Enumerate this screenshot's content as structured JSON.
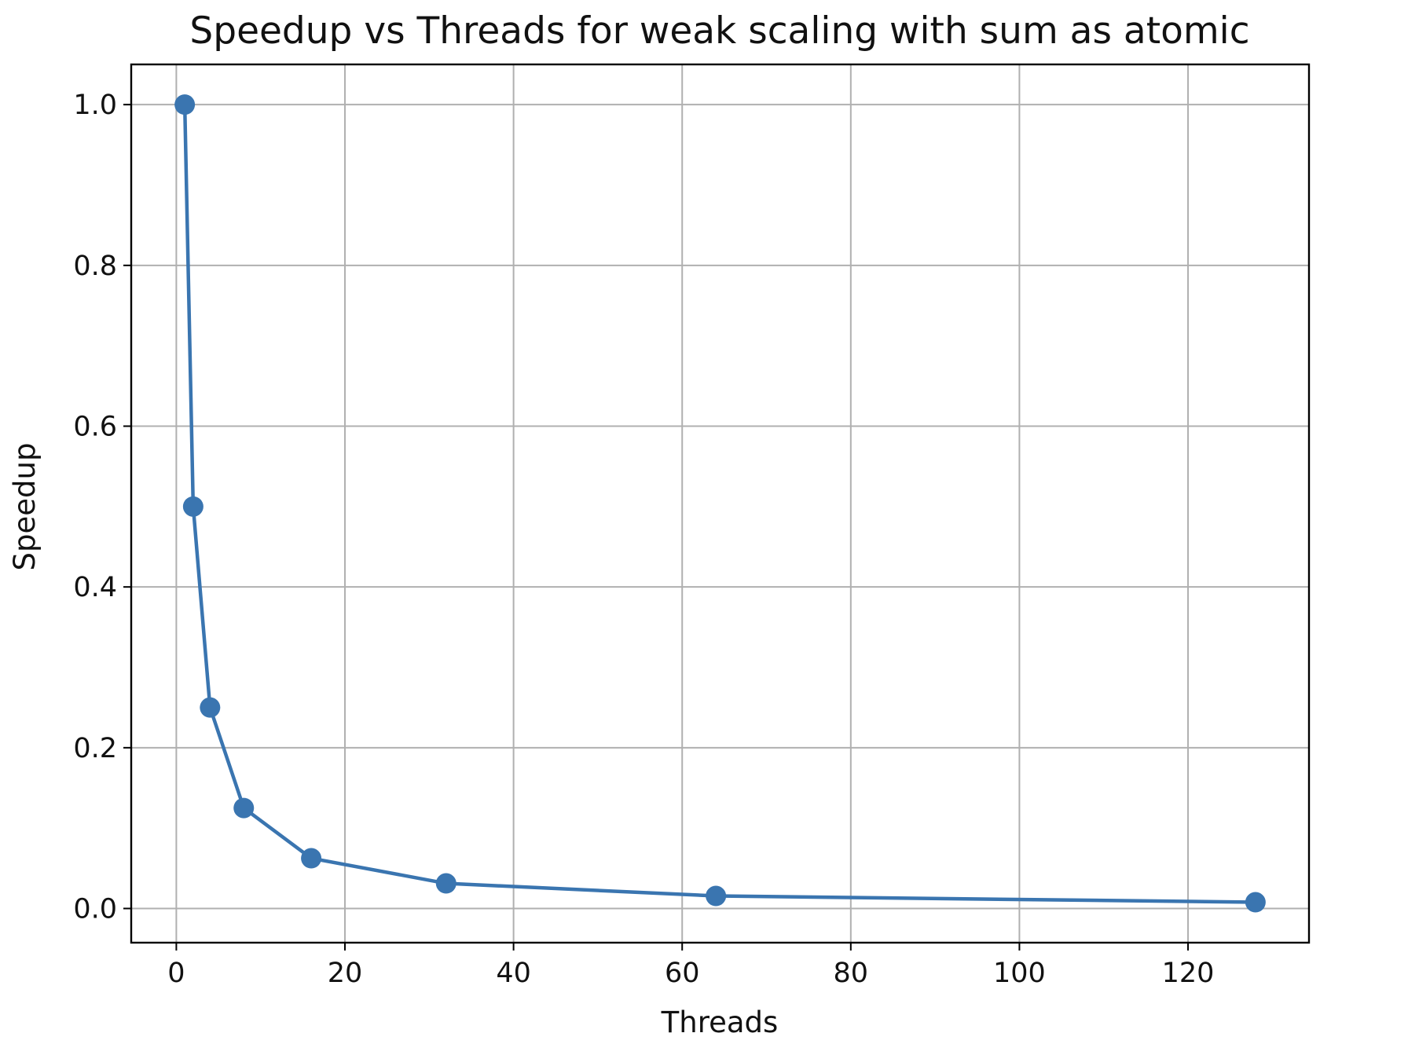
{
  "chart_data": {
    "type": "line",
    "title": "Speedup vs Threads for weak scaling with sum as atomic",
    "xlabel": "Threads",
    "ylabel": "Speedup",
    "xlim": [
      -5.35,
      134.35
    ],
    "ylim": [
      -0.0425,
      1.05
    ],
    "xticks": [
      0,
      20,
      40,
      60,
      80,
      100,
      120
    ],
    "xtick_labels": [
      "0",
      "20",
      "40",
      "60",
      "80",
      "100",
      "120"
    ],
    "yticks": [
      0.0,
      0.2,
      0.4,
      0.6,
      0.8,
      1.0
    ],
    "ytick_labels": [
      "0.0",
      "0.2",
      "0.4",
      "0.6",
      "0.8",
      "1.0"
    ],
    "grid": true,
    "legend": "none",
    "series": [
      {
        "color": "#3a75b0",
        "marker": "circle",
        "x": [
          1,
          2,
          4,
          8,
          16,
          32,
          64,
          128
        ],
        "y": [
          1.0,
          0.5,
          0.25,
          0.125,
          0.0625,
          0.03125,
          0.015625,
          0.0078125
        ]
      }
    ]
  }
}
